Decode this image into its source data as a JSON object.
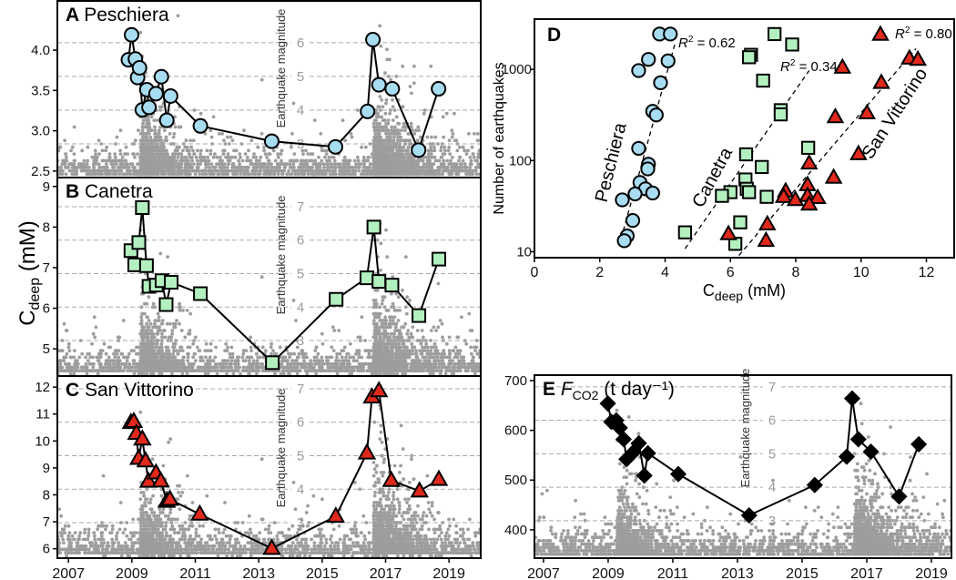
{
  "shared_ylabel": {
    "main": "C",
    "sub": "deep",
    "unit": " (mM)"
  },
  "chart_data": [
    {
      "id": "A",
      "type": "line",
      "letter": "A",
      "title": "Peschiera",
      "marker": "circle",
      "color": "#a8dcf0",
      "xlim": [
        2006.65,
        2020.0
      ],
      "ylim": [
        2.42,
        4.61
      ],
      "yticks": [
        "2.5",
        "3.0",
        "3.5",
        "4.0"
      ],
      "xticks": [],
      "mag_axis": {
        "label": "Earthquake magnitude",
        "ticks": [
          3,
          4,
          5,
          6
        ],
        "lim": [
          2.0,
          7.24
        ]
      },
      "x": [
        2008.89,
        2008.99,
        2009.11,
        2009.18,
        2009.24,
        2009.33,
        2009.47,
        2009.54,
        2009.76,
        2009.93,
        2010.1,
        2010.22,
        2011.16,
        2013.41,
        2015.42,
        2016.43,
        2016.6,
        2016.79,
        2017.21,
        2018.04,
        2018.67
      ],
      "y": [
        3.88,
        4.19,
        3.89,
        3.66,
        3.78,
        3.26,
        3.51,
        3.29,
        3.46,
        3.67,
        3.13,
        3.43,
        3.06,
        2.87,
        2.8,
        3.24,
        4.13,
        3.57,
        3.52,
        2.76,
        3.52
      ]
    },
    {
      "id": "B",
      "type": "line",
      "letter": "B",
      "title": "Canetra",
      "marker": "square",
      "color": "#b3f0c0",
      "xlim": [
        2006.65,
        2020.0
      ],
      "ylim": [
        4.33,
        9.22
      ],
      "yticks": [
        "5",
        "6",
        "7",
        "8",
        "9"
      ],
      "xticks": [],
      "mag_axis": {
        "label": "Earthquake magnitude",
        "ticks": [
          3,
          4,
          5,
          6,
          7
        ],
        "lim": [
          1.94,
          7.87
        ]
      },
      "x": [
        2008.97,
        2009.09,
        2009.22,
        2009.33,
        2009.46,
        2009.54,
        2009.77,
        2009.95,
        2010.08,
        2010.24,
        2011.16,
        2013.43,
        2015.44,
        2016.41,
        2016.63,
        2016.79,
        2017.2,
        2018.05,
        2018.68
      ],
      "y": [
        7.42,
        7.07,
        7.62,
        8.48,
        7.05,
        6.54,
        6.57,
        6.68,
        6.09,
        6.64,
        6.36,
        4.66,
        6.22,
        6.75,
        8.0,
        6.66,
        6.57,
        5.82,
        7.21
      ]
    },
    {
      "id": "C",
      "type": "line",
      "letter": "C",
      "title": "San Vittorino",
      "marker": "triangle",
      "color": "#e0281c",
      "xlim": [
        2006.65,
        2020.0
      ],
      "ylim": [
        5.65,
        12.41
      ],
      "yticks": [
        "6",
        "7",
        "8",
        "9",
        "10",
        "11",
        "12"
      ],
      "xticks": [
        "2007",
        "2009",
        "2011",
        "2013",
        "2015",
        "2017",
        "2019"
      ],
      "mag_axis": {
        "label": "Earthquake magnitude",
        "ticks": [
          3,
          4,
          5,
          6,
          7
        ],
        "lim": [
          1.94,
          7.38
        ]
      },
      "x": [
        2008.97,
        2009.06,
        2009.14,
        2009.21,
        2009.33,
        2009.43,
        2009.52,
        2009.76,
        2009.91,
        2010.1,
        2010.2,
        2011.14,
        2013.41,
        2015.43,
        2016.41,
        2016.57,
        2016.79,
        2017.18,
        2018.07,
        2018.68
      ],
      "y": [
        10.68,
        10.72,
        10.28,
        9.35,
        10.07,
        9.26,
        8.5,
        8.81,
        8.51,
        7.76,
        7.83,
        7.28,
        6.01,
        7.2,
        9.55,
        11.63,
        11.86,
        8.53,
        8.14,
        8.57
      ]
    },
    {
      "id": "E",
      "type": "line",
      "letter": "E",
      "title": "F",
      "title_sub": "CO2",
      "title_unit": " (t day⁻¹)",
      "marker": "diamond",
      "color": "#000000",
      "xlim": [
        2006.72,
        2019.62
      ],
      "ylim": [
        343,
        711
      ],
      "yticks": [
        "400",
        "500",
        "600",
        "700"
      ],
      "xticks": [
        "2007",
        "2009",
        "2011",
        "2013",
        "2015",
        "2017",
        "2019"
      ],
      "mag_axis": {
        "label": "Earthquake magnitude",
        "ticks": [
          3,
          4,
          5,
          6,
          7
        ],
        "lim": [
          1.88,
          7.35
        ]
      },
      "x": [
        2008.99,
        2009.1,
        2009.25,
        2009.36,
        2009.48,
        2009.57,
        2009.78,
        2009.95,
        2010.12,
        2010.23,
        2011.17,
        2013.36,
        2015.39,
        2016.38,
        2016.55,
        2016.74,
        2017.13,
        2018.0,
        2018.61
      ],
      "y": [
        654,
        617,
        620,
        605,
        582,
        542,
        556,
        574,
        509,
        554,
        512,
        429,
        490,
        547,
        664,
        582,
        557,
        467,
        572
      ]
    },
    {
      "id": "D",
      "type": "scatter",
      "letter": "D",
      "xlabel": {
        "main": "C",
        "sub": "deep",
        "unit": " (mM)"
      },
      "ylabel": "Number of earthquakes",
      "xlim": [
        0,
        12.85
      ],
      "ylim": [
        8.6,
        3560
      ],
      "yscale": "log",
      "xticks": [
        "0",
        "2",
        "4",
        "6",
        "8",
        "10",
        "12"
      ],
      "yticks": [
        "10",
        "100",
        "1000"
      ],
      "series": [
        {
          "name": "Peschiera",
          "marker": "circle",
          "color": "#a8dcf0",
          "r2": "0.62",
          "x": [
            3.83,
            4.16,
            3.49,
            4.09,
            3.19,
            3.86,
            3.62,
            3.73,
            3.19,
            3.49,
            3.47,
            3.23,
            3.4,
            3.08,
            3.62,
            2.69,
            3.01,
            2.84,
            2.75
          ],
          "y": [
            2440,
            2440,
            1288,
            1240,
            970,
            713,
            347,
            316,
            136,
            91,
            81,
            57.5,
            49,
            43,
            44,
            37,
            22,
            14.9,
            13.2
          ],
          "fit": [
            [
              2.72,
              17
            ],
            [
              4.31,
              1960
            ]
          ]
        },
        {
          "name": "Canetra",
          "marker": "square",
          "color": "#b3f0c0",
          "r2": "0.34",
          "x": [
            7.35,
            7.89,
            6.63,
            6.57,
            7.0,
            7.54,
            7.54,
            8.38,
            6.48,
            6.96,
            6.46,
            6.5,
            6.57,
            6.0,
            5.74,
            7.11,
            6.3,
            4.61,
            6.15
          ],
          "y": [
            2440,
            1875,
            1445,
            1360,
            753,
            357,
            321,
            138,
            117,
            85,
            62,
            49,
            45,
            45,
            41,
            40,
            21,
            16.3,
            12.2
          ],
          "fit": [
            [
              4.61,
              10.8
            ],
            [
              8.41,
              970
            ]
          ]
        },
        {
          "name": "San Vittorino",
          "marker": "triangle",
          "color": "#e0281c",
          "r2": "0.80",
          "x": [
            9.43,
            11.48,
            11.74,
            10.62,
            9.21,
            10.18,
            9.92,
            8.41,
            9.16,
            8.36,
            7.69,
            7.63,
            7.99,
            8.36,
            8.67,
            8.41,
            7.13,
            5.94,
            7.09
          ],
          "y": [
            1047,
            1318,
            1279,
            713,
            300,
            331,
            118,
            93,
            65,
            54,
            46,
            40,
            37,
            41,
            39,
            33,
            20,
            15.6,
            13.2
          ],
          "fit": [
            [
              6.26,
              9.1
            ],
            [
              11.68,
              1690
            ]
          ]
        }
      ]
    }
  ]
}
